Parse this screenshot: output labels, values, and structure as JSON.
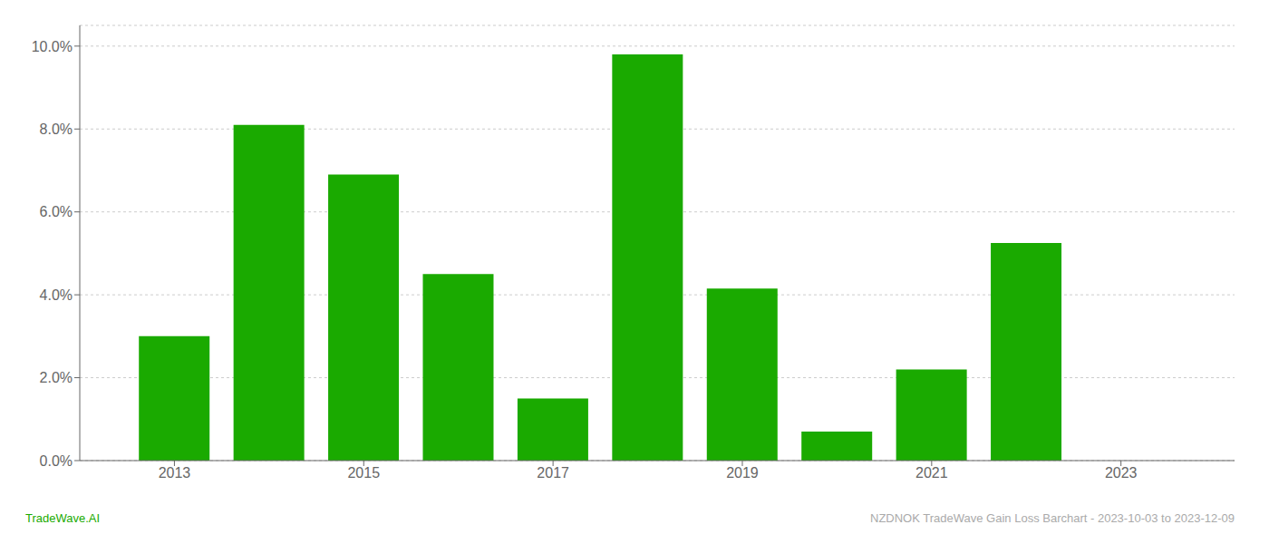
{
  "chart_data": {
    "type": "bar",
    "x": [
      2013,
      2014,
      2015,
      2016,
      2017,
      2018,
      2019,
      2020,
      2021,
      2022
    ],
    "values": [
      0.03,
      0.081,
      0.069,
      0.045,
      0.015,
      0.098,
      0.0415,
      0.007,
      0.022,
      0.0525
    ],
    "color": "#1aaa00",
    "xlim": [
      2012.0,
      2024.2
    ],
    "xticks": [
      2013,
      2015,
      2017,
      2019,
      2021,
      2023
    ],
    "ylim": [
      0,
      0.105
    ],
    "yticks": [
      {
        "value": 0.0,
        "label": "0.0%"
      },
      {
        "value": 0.02,
        "label": "2.0%"
      },
      {
        "value": 0.04,
        "label": "4.0%"
      },
      {
        "value": 0.06,
        "label": "6.0%"
      },
      {
        "value": 0.08,
        "label": "8.0%"
      },
      {
        "value": 0.1,
        "label": "10.0%"
      }
    ],
    "grid": true,
    "annotations": [
      {
        "text": "TradeWave.AI",
        "color": "#1aaa00"
      },
      {
        "text": "NZDNOK TradeWave Gain Loss Barchart - 2023-10-03 to 2023-12-09",
        "color": "#aaaaaa"
      }
    ]
  }
}
